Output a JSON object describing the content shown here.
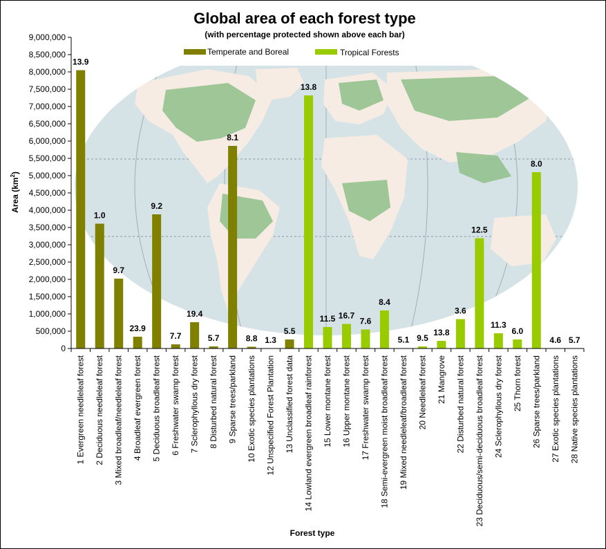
{
  "chart_data": {
    "type": "bar",
    "title": "Global area of each forest type",
    "subtitle": "(with percentage protected shown above each bar)",
    "xlabel": "Forest type",
    "ylabel_main": "Area (km",
    "ylabel_sup": "2",
    "ylabel_close": ")",
    "ylim": [
      0,
      9000000
    ],
    "ytick_step": 500000,
    "ytick_labels": [
      "0",
      "500,000",
      "1,000,000",
      "1,500,000",
      "2,000,000",
      "2,500,000",
      "3,000,000",
      "3,500,000",
      "4,000,000",
      "4,500,000",
      "5,000,000",
      "5,500,000",
      "6,000,000",
      "6,500,000",
      "7,000,000",
      "7,500,000",
      "8,000,000",
      "8,500,000",
      "9,000,000"
    ],
    "legend": {
      "placement": "top-center",
      "entries": [
        "Temperate and Boreal",
        "Tropical Forests"
      ]
    },
    "colors": {
      "temperate": "#808000",
      "tropical": "#99cc00"
    },
    "background_image": "world-forest-map",
    "categories": [
      "1 Evergreen needleleaf forest",
      "2 Deciduous needleleaf forest",
      "3 Mixed broadleaf/needleleaf forest",
      "4 Broadleaf evergreen forest",
      "5 Deciduous broadleaf forest",
      "6 Freshwater swamp forest",
      "7 Sclerophyllous dry forest",
      "8 Disturbed natural forest",
      "9 Sparse trees/parkland",
      "10 Exotic species plantations",
      "12 Unspecified Forest Plantation",
      "13 Unclassified forest data",
      "14 Lowland evergreen broadleaf rainforest",
      "15 Lower montane forest",
      "16 Upper montane forest",
      "17 Freshwater swamp forest",
      "18 Semi-evergreen moist broadleaf forest",
      "19 Mixed needleleaf/broadleaf forest",
      "20 Needleleaf forest",
      "21 Mangrove",
      "22 Disturbed natural forest",
      "23 Deciduous/semi-deciduous broadleaf forest",
      "24 Sclerophyllous dry forest",
      "25 Thorn forest",
      "26 Sparse trees/parkland",
      "27 Exotic species plantations",
      "28 Native species plantations"
    ],
    "series_group": [
      "temperate",
      "temperate",
      "temperate",
      "temperate",
      "temperate",
      "temperate",
      "temperate",
      "temperate",
      "temperate",
      "temperate",
      "temperate",
      "temperate",
      "tropical",
      "tropical",
      "tropical",
      "tropical",
      "tropical",
      "tropical",
      "tropical",
      "tropical",
      "tropical",
      "tropical",
      "tropical",
      "tropical",
      "tropical",
      "tropical",
      "tropical"
    ],
    "values": [
      8050000,
      3610000,
      2020000,
      340000,
      3880000,
      120000,
      760000,
      60000,
      5860000,
      50000,
      0,
      260000,
      7320000,
      620000,
      710000,
      550000,
      1100000,
      10000,
      60000,
      220000,
      850000,
      3190000,
      440000,
      260000,
      5100000,
      0,
      0
    ],
    "data_labels": [
      "13.9",
      "1.0",
      "9.7",
      "23.9",
      "9.2",
      "7.7",
      "19.4",
      "5.7",
      "8.1",
      "8.8",
      "1.3",
      "5.5",
      "13.8",
      "11.5",
      "16.7",
      "7.6",
      "8.4",
      "5.1",
      "9.5",
      "13.8",
      "3.6",
      "12.5",
      "11.3",
      "6.0",
      "8.0",
      "4.6",
      "5.7"
    ]
  }
}
